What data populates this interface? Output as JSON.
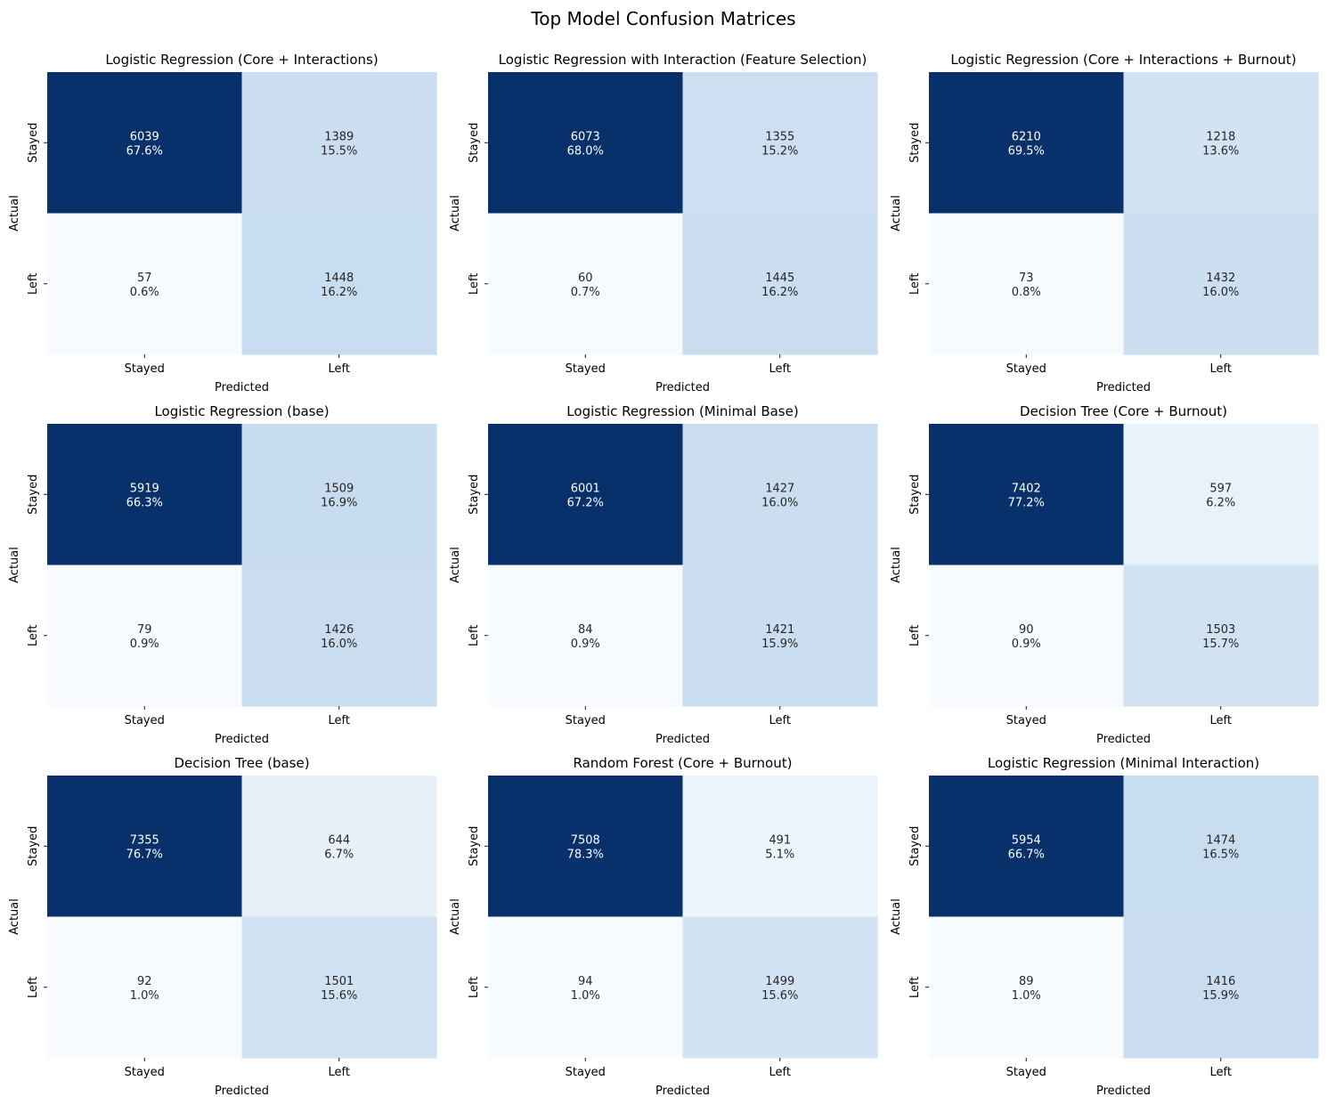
{
  "figure": {
    "title": "Top Model Confusion Matrices"
  },
  "chart_data": [
    {
      "type": "heatmap",
      "title": "Logistic Regression (Core + Interactions)",
      "xlabel": "Predicted",
      "ylabel": "Actual",
      "x_ticks": [
        "Stayed",
        "Left"
      ],
      "y_ticks": [
        "Stayed",
        "Left"
      ],
      "values": [
        [
          6039,
          1389
        ],
        [
          57,
          1448
        ]
      ],
      "percents": [
        [
          "67.6%",
          "15.5%"
        ],
        [
          "0.6%",
          "16.2%"
        ]
      ]
    },
    {
      "type": "heatmap",
      "title": "Logistic Regression with Interaction (Feature Selection)",
      "xlabel": "Predicted",
      "ylabel": "Actual",
      "x_ticks": [
        "Stayed",
        "Left"
      ],
      "y_ticks": [
        "Stayed",
        "Left"
      ],
      "values": [
        [
          6073,
          1355
        ],
        [
          60,
          1445
        ]
      ],
      "percents": [
        [
          "68.0%",
          "15.2%"
        ],
        [
          "0.7%",
          "16.2%"
        ]
      ]
    },
    {
      "type": "heatmap",
      "title": "Logistic Regression (Core + Interactions + Burnout)",
      "xlabel": "Predicted",
      "ylabel": "Actual",
      "x_ticks": [
        "Stayed",
        "Left"
      ],
      "y_ticks": [
        "Stayed",
        "Left"
      ],
      "values": [
        [
          6210,
          1218
        ],
        [
          73,
          1432
        ]
      ],
      "percents": [
        [
          "69.5%",
          "13.6%"
        ],
        [
          "0.8%",
          "16.0%"
        ]
      ]
    },
    {
      "type": "heatmap",
      "title": "Logistic Regression (base)",
      "xlabel": "Predicted",
      "ylabel": "Actual",
      "x_ticks": [
        "Stayed",
        "Left"
      ],
      "y_ticks": [
        "Stayed",
        "Left"
      ],
      "values": [
        [
          5919,
          1509
        ],
        [
          79,
          1426
        ]
      ],
      "percents": [
        [
          "66.3%",
          "16.9%"
        ],
        [
          "0.9%",
          "16.0%"
        ]
      ]
    },
    {
      "type": "heatmap",
      "title": "Logistic Regression (Minimal Base)",
      "xlabel": "Predicted",
      "ylabel": "Actual",
      "x_ticks": [
        "Stayed",
        "Left"
      ],
      "y_ticks": [
        "Stayed",
        "Left"
      ],
      "values": [
        [
          6001,
          1427
        ],
        [
          84,
          1421
        ]
      ],
      "percents": [
        [
          "67.2%",
          "16.0%"
        ],
        [
          "0.9%",
          "15.9%"
        ]
      ]
    },
    {
      "type": "heatmap",
      "title": "Decision Tree (Core + Burnout)",
      "xlabel": "Predicted",
      "ylabel": "Actual",
      "x_ticks": [
        "Stayed",
        "Left"
      ],
      "y_ticks": [
        "Stayed",
        "Left"
      ],
      "values": [
        [
          7402,
          597
        ],
        [
          90,
          1503
        ]
      ],
      "percents": [
        [
          "77.2%",
          "6.2%"
        ],
        [
          "0.9%",
          "15.7%"
        ]
      ]
    },
    {
      "type": "heatmap",
      "title": "Decision Tree (base)",
      "xlabel": "Predicted",
      "ylabel": "Actual",
      "x_ticks": [
        "Stayed",
        "Left"
      ],
      "y_ticks": [
        "Stayed",
        "Left"
      ],
      "values": [
        [
          7355,
          644
        ],
        [
          92,
          1501
        ]
      ],
      "percents": [
        [
          "76.7%",
          "6.7%"
        ],
        [
          "1.0%",
          "15.6%"
        ]
      ]
    },
    {
      "type": "heatmap",
      "title": "Random Forest (Core + Burnout)",
      "xlabel": "Predicted",
      "ylabel": "Actual",
      "x_ticks": [
        "Stayed",
        "Left"
      ],
      "y_ticks": [
        "Stayed",
        "Left"
      ],
      "values": [
        [
          7508,
          491
        ],
        [
          94,
          1499
        ]
      ],
      "percents": [
        [
          "78.3%",
          "5.1%"
        ],
        [
          "1.0%",
          "15.6%"
        ]
      ]
    },
    {
      "type": "heatmap",
      "title": "Logistic Regression (Minimal Interaction)",
      "xlabel": "Predicted",
      "ylabel": "Actual",
      "x_ticks": [
        "Stayed",
        "Left"
      ],
      "y_ticks": [
        "Stayed",
        "Left"
      ],
      "values": [
        [
          5954,
          1474
        ],
        [
          89,
          1416
        ]
      ],
      "percents": [
        [
          "66.7%",
          "16.5%"
        ],
        [
          "1.0%",
          "15.9%"
        ]
      ]
    }
  ]
}
